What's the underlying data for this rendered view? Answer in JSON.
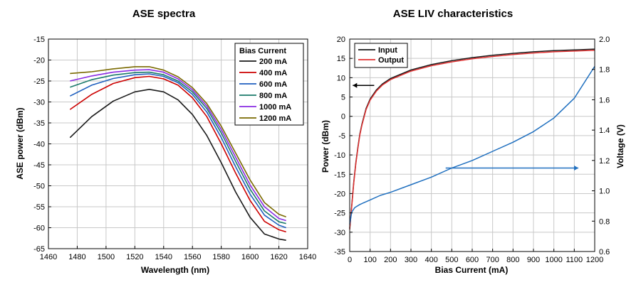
{
  "chart_data": [
    {
      "type": "line",
      "title": "ASE spectra",
      "xlabel": "Wavelength (nm)",
      "ylabel": "ASE power (dBm)",
      "xlim": [
        1460,
        1640
      ],
      "ylim": [
        -65,
        -15
      ],
      "x_ticks": [
        "1460",
        "1480",
        "1500",
        "1520",
        "1540",
        "1560",
        "1580",
        "1600",
        "1620",
        "1640"
      ],
      "y_ticks": [
        "-65",
        "-60",
        "-55",
        "-50",
        "-45",
        "-40",
        "-35",
        "-30",
        "-25",
        "-20",
        "-15"
      ],
      "grid": true,
      "legend": {
        "title": "Bias Current",
        "placement": "top-right"
      },
      "colors": {
        "200 mA": "#1a1a1a",
        "400 mA": "#cc0000",
        "600 mA": "#1f5fbf",
        "800 mA": "#1a7a6a",
        "1000 mA": "#8a2be2",
        "1200 mA": "#7a6a00"
      },
      "series": [
        {
          "name": "200 mA",
          "x": [
            1475,
            1490,
            1505,
            1520,
            1530,
            1540,
            1550,
            1560,
            1570,
            1580,
            1590,
            1600,
            1610,
            1620,
            1625
          ],
          "values": [
            -38.5,
            -33.5,
            -29.8,
            -27.6,
            -27.0,
            -27.6,
            -29.5,
            -33.0,
            -38.0,
            -44.5,
            -51.5,
            -57.5,
            -61.5,
            -62.7,
            -63.0
          ]
        },
        {
          "name": "400 mA",
          "x": [
            1475,
            1490,
            1505,
            1520,
            1530,
            1540,
            1550,
            1560,
            1570,
            1580,
            1590,
            1600,
            1610,
            1620,
            1625
          ],
          "values": [
            -31.8,
            -28.2,
            -25.6,
            -24.2,
            -23.9,
            -24.5,
            -26.0,
            -29.0,
            -33.5,
            -40.0,
            -47.0,
            -53.5,
            -58.5,
            -60.5,
            -61.0
          ]
        },
        {
          "name": "600 mA",
          "x": [
            1475,
            1490,
            1505,
            1520,
            1530,
            1540,
            1550,
            1560,
            1570,
            1580,
            1590,
            1600,
            1610,
            1620,
            1625
          ],
          "values": [
            -28.6,
            -26.0,
            -24.4,
            -23.5,
            -23.3,
            -23.9,
            -25.4,
            -28.2,
            -32.4,
            -38.5,
            -45.5,
            -52.0,
            -57.0,
            -59.4,
            -60.0
          ]
        },
        {
          "name": "800 mA",
          "x": [
            1475,
            1490,
            1505,
            1520,
            1530,
            1540,
            1550,
            1560,
            1570,
            1580,
            1590,
            1600,
            1610,
            1620,
            1625
          ],
          "values": [
            -26.5,
            -24.7,
            -23.6,
            -23.0,
            -22.9,
            -23.5,
            -25.0,
            -27.6,
            -31.6,
            -37.4,
            -44.2,
            -50.8,
            -56.0,
            -58.6,
            -59.0
          ]
        },
        {
          "name": "1000 mA",
          "x": [
            1475,
            1490,
            1505,
            1520,
            1530,
            1540,
            1550,
            1560,
            1570,
            1580,
            1590,
            1600,
            1610,
            1620,
            1625
          ],
          "values": [
            -25.0,
            -23.8,
            -22.9,
            -22.4,
            -22.3,
            -22.9,
            -24.5,
            -27.1,
            -31.0,
            -36.6,
            -43.2,
            -49.8,
            -55.0,
            -57.8,
            -58.3
          ]
        },
        {
          "name": "1200 mA",
          "x": [
            1475,
            1490,
            1505,
            1520,
            1530,
            1540,
            1550,
            1560,
            1570,
            1580,
            1590,
            1600,
            1610,
            1620,
            1625
          ],
          "values": [
            -23.2,
            -22.8,
            -22.1,
            -21.6,
            -21.6,
            -22.4,
            -24.0,
            -26.6,
            -30.4,
            -35.8,
            -42.2,
            -48.6,
            -54.0,
            -56.8,
            -57.4
          ]
        }
      ]
    },
    {
      "type": "line",
      "title": "ASE LIV characteristics",
      "xlabel": "Bias Current (mA)",
      "ylabel": "Power (dBm)",
      "y2label": "Voltage (V)",
      "xlim": [
        0,
        1200
      ],
      "ylim": [
        -35,
        20
      ],
      "y2lim": [
        0.6,
        2.0
      ],
      "x_ticks": [
        "0",
        "100",
        "200",
        "300",
        "400",
        "500",
        "600",
        "700",
        "800",
        "900",
        "1000",
        "1100",
        "1200"
      ],
      "y_ticks": [
        "-35",
        "-30",
        "-25",
        "-20",
        "-15",
        "-10",
        "-5",
        "0",
        "5",
        "10",
        "15",
        "20"
      ],
      "y2_ticks": [
        "0.6",
        "0.8",
        "1.0",
        "1.2",
        "1.4",
        "1.6",
        "1.8",
        "2.0"
      ],
      "grid": true,
      "legend": {
        "placement": "top-left"
      },
      "colors": {
        "Input": "#1a1a1a",
        "Output": "#e03030",
        "Voltage": "#1f6fbf"
      },
      "annotations": [
        {
          "type": "arrow",
          "direction": "left",
          "points_to": "Power (dBm) axis",
          "at": {
            "x": [
              15,
              120
            ],
            "y": 8
          }
        },
        {
          "type": "arrow",
          "direction": "right",
          "points_to": "Voltage (V) axis",
          "at": {
            "x": [
              470,
              1120
            ],
            "y2": 1.15
          }
        }
      ],
      "series": [
        {
          "name": "Input",
          "axis": "left",
          "x": [
            0,
            10,
            20,
            30,
            40,
            50,
            60,
            80,
            100,
            130,
            160,
            200,
            300,
            400,
            500,
            600,
            700,
            800,
            900,
            1000,
            1100,
            1200
          ],
          "values": [
            -29,
            -23,
            -17,
            -12,
            -8,
            -4.5,
            -2,
            2,
            4.5,
            6.8,
            8.4,
            9.8,
            12.0,
            13.4,
            14.4,
            15.2,
            15.8,
            16.3,
            16.7,
            17.0,
            17.2,
            17.4
          ]
        },
        {
          "name": "Output",
          "axis": "left",
          "x": [
            0,
            10,
            20,
            30,
            40,
            50,
            60,
            80,
            100,
            130,
            160,
            200,
            300,
            400,
            500,
            600,
            700,
            800,
            900,
            1000,
            1100,
            1200
          ],
          "values": [
            -29.3,
            -23.3,
            -17.3,
            -12.3,
            -8.3,
            -4.8,
            -2.3,
            1.7,
            4.2,
            6.5,
            8.1,
            9.5,
            11.7,
            13.1,
            14.1,
            14.9,
            15.5,
            16.0,
            16.4,
            16.7,
            16.9,
            17.1
          ]
        },
        {
          "name": "Voltage",
          "axis": "right",
          "x": [
            0,
            10,
            25,
            50,
            100,
            150,
            200,
            300,
            400,
            500,
            600,
            700,
            800,
            900,
            1000,
            1100,
            1200
          ],
          "values": [
            0.78,
            0.86,
            0.89,
            0.91,
            0.94,
            0.97,
            0.99,
            1.04,
            1.09,
            1.15,
            1.2,
            1.26,
            1.32,
            1.39,
            1.48,
            1.61,
            1.82
          ]
        }
      ]
    }
  ]
}
